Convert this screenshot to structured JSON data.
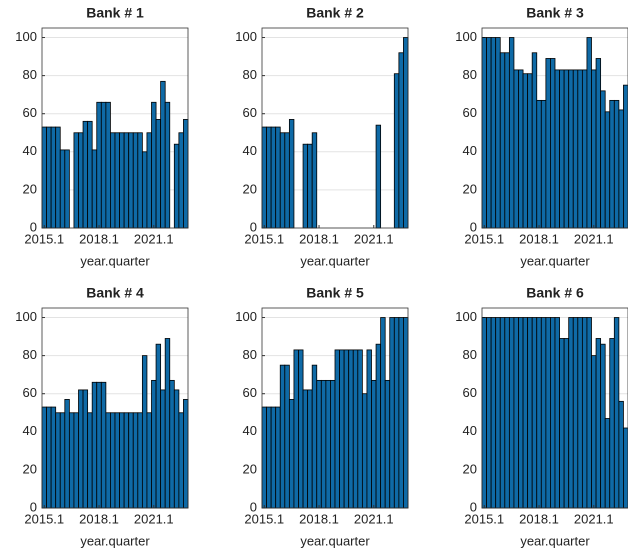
{
  "chart_data": [
    {
      "type": "bar",
      "title": "Bank # 1",
      "xlabel": "year.quarter",
      "categories": [
        "2015.1",
        null,
        null,
        null,
        null,
        null,
        null,
        null,
        null,
        null,
        null,
        null,
        "2018.1",
        null,
        null,
        null,
        null,
        null,
        null,
        null,
        null,
        null,
        null,
        null,
        "2021.1",
        null,
        null,
        null,
        null,
        null,
        null,
        null
      ],
      "values": [
        53,
        53,
        53,
        53,
        41,
        41,
        0,
        50,
        50,
        56,
        56,
        41,
        66,
        66,
        66,
        50,
        50,
        50,
        50,
        50,
        50,
        50,
        40,
        50,
        66,
        57,
        77,
        66,
        0,
        44,
        50,
        57
      ],
      "color": "#0f6aa6",
      "ylim": [
        0,
        105
      ],
      "yticks": [
        0,
        20,
        40,
        60,
        80,
        100
      ],
      "grid": true
    },
    {
      "type": "bar",
      "title": "Bank # 2",
      "xlabel": "year.quarter",
      "categories": [
        "2015.1",
        null,
        null,
        null,
        null,
        null,
        null,
        null,
        null,
        null,
        null,
        null,
        "2018.1",
        null,
        null,
        null,
        null,
        null,
        null,
        null,
        null,
        null,
        null,
        null,
        "2021.1",
        null,
        null,
        null,
        null,
        null,
        null,
        null
      ],
      "values": [
        53,
        53,
        53,
        53,
        50,
        50,
        57,
        0,
        0,
        44,
        44,
        50,
        0,
        0,
        0,
        0,
        0,
        0,
        0,
        0,
        0,
        0,
        0,
        0,
        0,
        54,
        0,
        0,
        0,
        81,
        92,
        100
      ],
      "color": "#0f6aa6",
      "ylim": [
        0,
        105
      ],
      "yticks": [
        0,
        20,
        40,
        60,
        80,
        100
      ],
      "grid": true
    },
    {
      "type": "bar",
      "title": "Bank # 3",
      "xlabel": "year.quarter",
      "categories": [
        "2015.1",
        null,
        null,
        null,
        null,
        null,
        null,
        null,
        null,
        null,
        null,
        null,
        "2018.1",
        null,
        null,
        null,
        null,
        null,
        null,
        null,
        null,
        null,
        null,
        null,
        "2021.1",
        null,
        null,
        null,
        null,
        null,
        null,
        null
      ],
      "values": [
        100,
        100,
        100,
        100,
        92,
        92,
        100,
        83,
        83,
        81,
        81,
        92,
        67,
        67,
        89,
        89,
        83,
        83,
        83,
        83,
        83,
        83,
        83,
        100,
        83,
        89,
        72,
        61,
        67,
        67,
        62,
        75
      ],
      "color": "#0f6aa6",
      "ylim": [
        0,
        105
      ],
      "yticks": [
        0,
        20,
        40,
        60,
        80,
        100
      ],
      "grid": true
    },
    {
      "type": "bar",
      "title": "Bank # 4",
      "xlabel": "year.quarter",
      "categories": [
        "2015.1",
        null,
        null,
        null,
        null,
        null,
        null,
        null,
        null,
        null,
        null,
        null,
        "2018.1",
        null,
        null,
        null,
        null,
        null,
        null,
        null,
        null,
        null,
        null,
        null,
        "2021.1",
        null,
        null,
        null,
        null,
        null,
        null,
        null
      ],
      "values": [
        53,
        53,
        53,
        50,
        50,
        57,
        50,
        50,
        62,
        62,
        50,
        66,
        66,
        66,
        50,
        50,
        50,
        50,
        50,
        50,
        50,
        50,
        80,
        50,
        67,
        86,
        62,
        89,
        67,
        62,
        50,
        57
      ],
      "color": "#0f6aa6",
      "ylim": [
        0,
        105
      ],
      "yticks": [
        0,
        20,
        40,
        60,
        80,
        100
      ],
      "grid": true
    },
    {
      "type": "bar",
      "title": "Bank # 5",
      "xlabel": "year.quarter",
      "categories": [
        "2015.1",
        null,
        null,
        null,
        null,
        null,
        null,
        null,
        null,
        null,
        null,
        null,
        "2018.1",
        null,
        null,
        null,
        null,
        null,
        null,
        null,
        null,
        null,
        null,
        null,
        "2021.1",
        null,
        null,
        null,
        null,
        null,
        null,
        null
      ],
      "values": [
        53,
        53,
        53,
        53,
        75,
        75,
        57,
        83,
        83,
        62,
        62,
        75,
        67,
        67,
        67,
        67,
        83,
        83,
        83,
        83,
        83,
        83,
        60,
        83,
        67,
        86,
        100,
        67,
        100,
        100,
        100,
        100
      ],
      "color": "#0f6aa6",
      "ylim": [
        0,
        105
      ],
      "yticks": [
        0,
        20,
        40,
        60,
        80,
        100
      ],
      "grid": true
    },
    {
      "type": "bar",
      "title": "Bank # 6",
      "xlabel": "year.quarter",
      "categories": [
        "2015.1",
        null,
        null,
        null,
        null,
        null,
        null,
        null,
        null,
        null,
        null,
        null,
        "2018.1",
        null,
        null,
        null,
        null,
        null,
        null,
        null,
        null,
        null,
        null,
        null,
        "2021.1",
        null,
        null,
        null,
        null,
        null,
        null,
        null
      ],
      "values": [
        100,
        100,
        100,
        100,
        100,
        100,
        100,
        100,
        100,
        100,
        100,
        100,
        100,
        100,
        100,
        100,
        100,
        89,
        89,
        100,
        100,
        100,
        100,
        100,
        80,
        89,
        86,
        47,
        89,
        100,
        56,
        42
      ],
      "color": "#0f6aa6",
      "ylim": [
        0,
        105
      ],
      "yticks": [
        0,
        20,
        40,
        60,
        80,
        100
      ],
      "grid": true
    }
  ]
}
